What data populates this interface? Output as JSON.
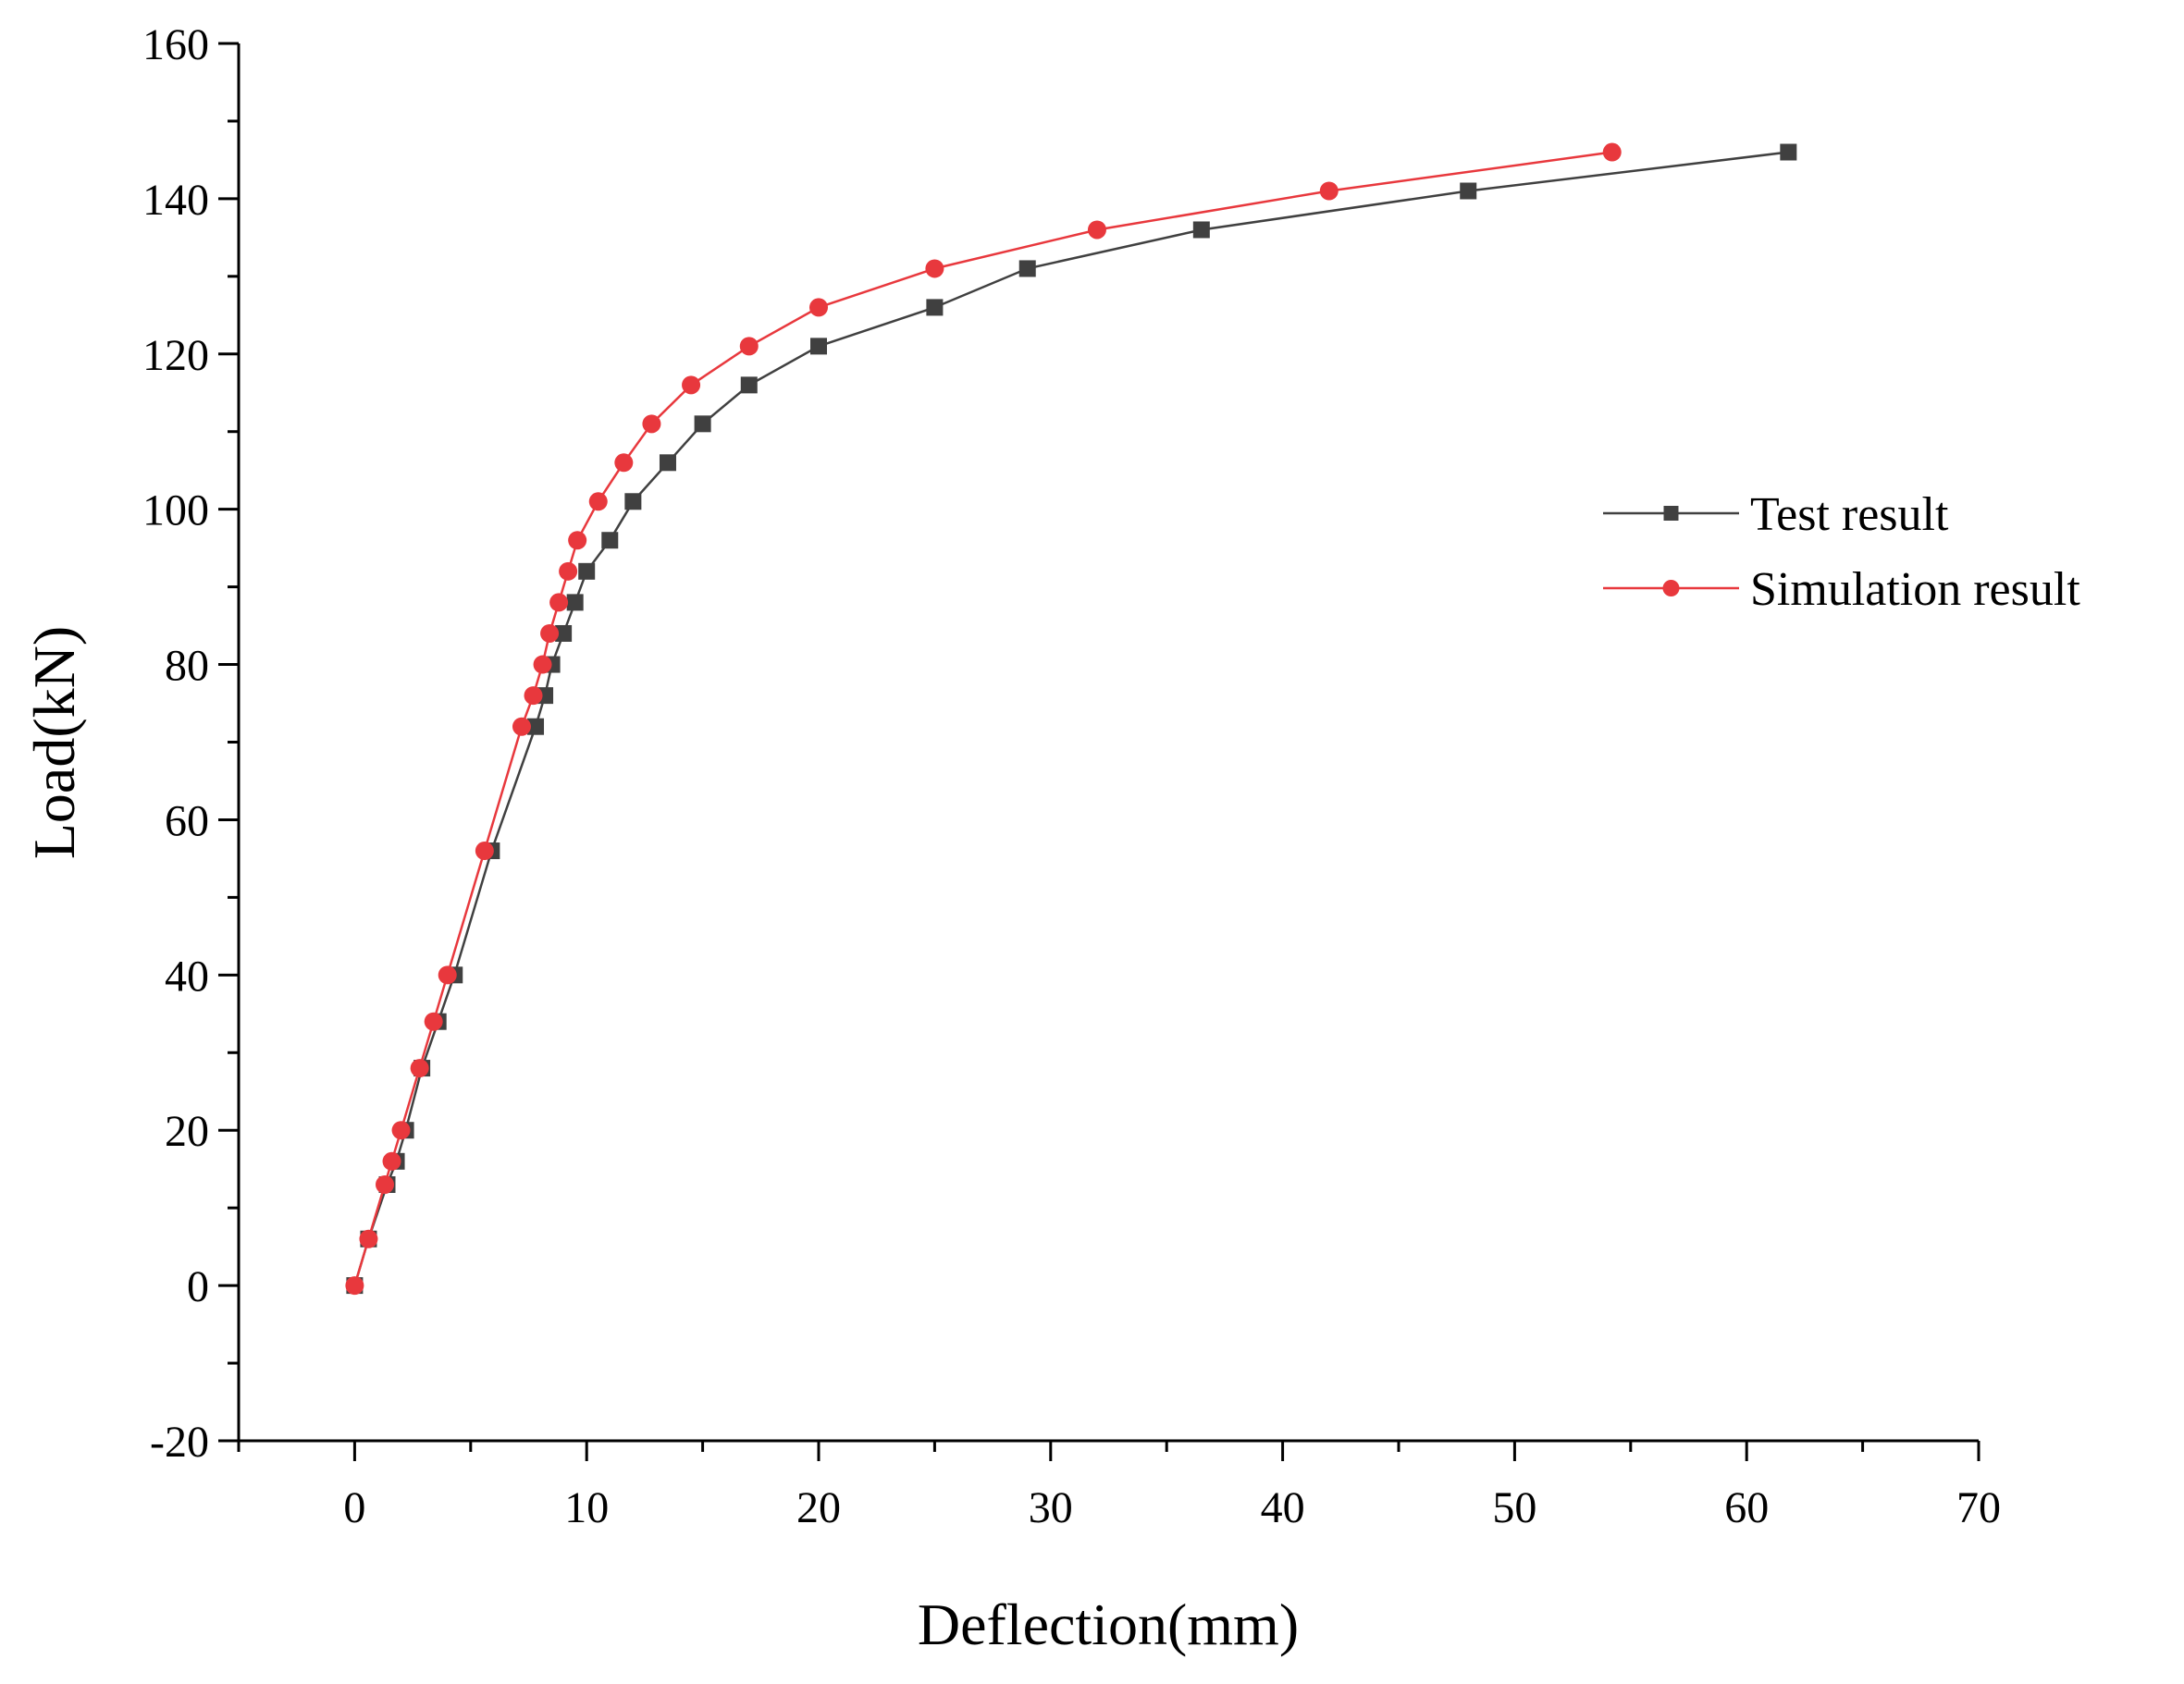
{
  "chart_data": {
    "type": "line",
    "title": "",
    "xlabel": "Deflection(mm)",
    "ylabel": "Load(kN)",
    "xlim": [
      -5,
      70
    ],
    "ylim": [
      -20,
      160
    ],
    "xticks": [
      0,
      10,
      20,
      30,
      40,
      50,
      60,
      70
    ],
    "yticks": [
      -20,
      0,
      20,
      40,
      60,
      80,
      100,
      120,
      140,
      160
    ],
    "legend_position": "right",
    "series": [
      {
        "name": "Test result",
        "color": "#404040",
        "marker": "square",
        "points": [
          [
            0.0,
            0
          ],
          [
            0.6,
            6
          ],
          [
            1.4,
            13
          ],
          [
            1.8,
            16
          ],
          [
            2.2,
            20
          ],
          [
            2.9,
            28
          ],
          [
            3.6,
            34
          ],
          [
            4.3,
            40
          ],
          [
            5.9,
            56
          ],
          [
            7.8,
            72
          ],
          [
            8.2,
            76
          ],
          [
            8.5,
            80
          ],
          [
            9.0,
            84
          ],
          [
            9.5,
            88
          ],
          [
            10.0,
            92
          ],
          [
            11.0,
            96
          ],
          [
            12.0,
            101
          ],
          [
            13.5,
            106
          ],
          [
            15.0,
            111
          ],
          [
            17.0,
            116
          ],
          [
            20.0,
            121
          ],
          [
            25.0,
            126
          ],
          [
            29.0,
            131
          ],
          [
            36.5,
            136
          ],
          [
            48.0,
            141
          ],
          [
            61.8,
            146
          ]
        ]
      },
      {
        "name": "Simulation result",
        "color": "#e8383d",
        "marker": "circle",
        "points": [
          [
            0.0,
            0
          ],
          [
            0.6,
            6
          ],
          [
            1.3,
            13
          ],
          [
            1.6,
            16
          ],
          [
            2.0,
            20
          ],
          [
            2.8,
            28
          ],
          [
            3.4,
            34
          ],
          [
            4.0,
            40
          ],
          [
            5.6,
            56
          ],
          [
            7.2,
            72
          ],
          [
            7.7,
            76
          ],
          [
            8.1,
            80
          ],
          [
            8.4,
            84
          ],
          [
            8.8,
            88
          ],
          [
            9.2,
            92
          ],
          [
            9.6,
            96
          ],
          [
            10.5,
            101
          ],
          [
            11.6,
            106
          ],
          [
            12.8,
            111
          ],
          [
            14.5,
            116
          ],
          [
            17.0,
            121
          ],
          [
            20.0,
            126
          ],
          [
            25.0,
            131
          ],
          [
            32.0,
            136
          ],
          [
            42.0,
            141
          ],
          [
            54.2,
            146
          ]
        ]
      }
    ]
  }
}
